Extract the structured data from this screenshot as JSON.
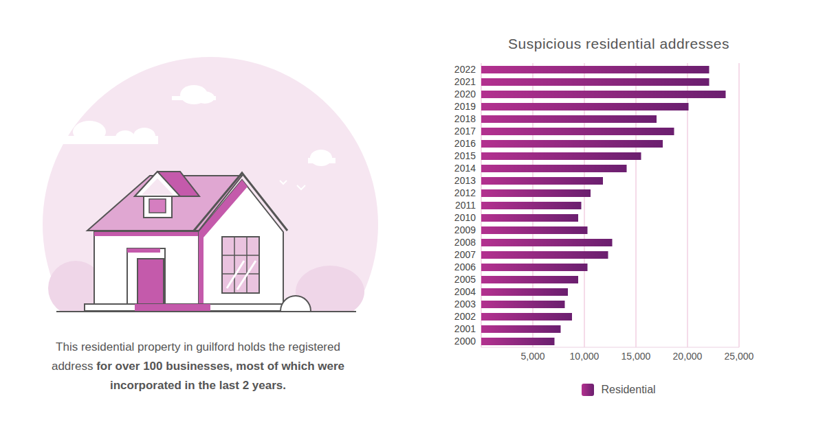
{
  "chart_data": {
    "type": "bar",
    "title": "Suspicious residential addresses",
    "orientation": "horizontal",
    "categories": [
      "2022",
      "2021",
      "2020",
      "2019",
      "2018",
      "2017",
      "2016",
      "2015",
      "2014",
      "2013",
      "2012",
      "2011",
      "2010",
      "2009",
      "2008",
      "2007",
      "2006",
      "2005",
      "2004",
      "2003",
      "2002",
      "2001",
      "2000"
    ],
    "series": [
      {
        "name": "Residential",
        "color": "#6b1f6f",
        "values": [
          22100,
          22100,
          23700,
          20100,
          17000,
          18700,
          17600,
          15500,
          14100,
          11800,
          10600,
          9700,
          9400,
          10300,
          12700,
          12300,
          10300,
          9400,
          8400,
          8100,
          8800,
          7700,
          7100
        ]
      }
    ],
    "xlim": [
      0,
      25000
    ],
    "xticks": [
      {
        "value": 5000,
        "label": "5,000"
      },
      {
        "value": 10000,
        "label": "10,000"
      },
      {
        "value": 15000,
        "label": "15,000"
      },
      {
        "value": 20000,
        "label": "20,000"
      },
      {
        "value": 25000,
        "label": "25,000"
      }
    ],
    "grid": true,
    "legend": "bottom"
  },
  "caption": {
    "text": "This residential property in guilford holds the registered address ",
    "emphasis": "for over 100 businesses, most of which were incorporated in the last 2 years."
  }
}
